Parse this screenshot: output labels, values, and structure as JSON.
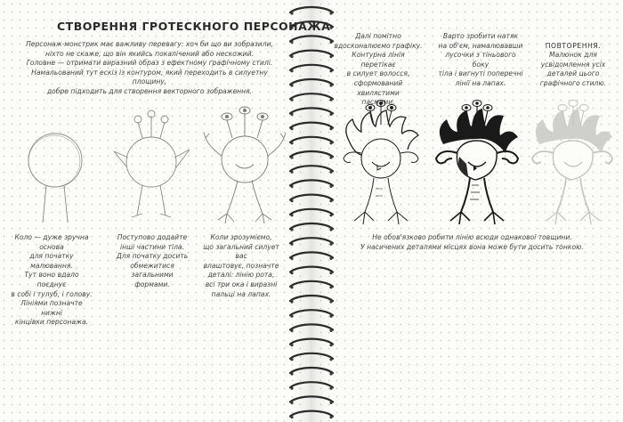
{
  "left_page": {
    "title": "СТВОРЕННЯ ГРОТЕСКНОГО ПЕРСОНАЖА",
    "intro": "Персонаж-монстрик має важливу перевагу: хоч би що ви зобразили,\nніхто не скаже, що він якийсь покалічений або нескожий.\nГоловне — отримати виразний образ з ефектному графічному стилі.\nНамальований тут ескіз із контуром, який переходить в силуетну площину,\nдобре підходить для створення векторного зображення.",
    "captions": [
      "Коло — дуже зручна основа\nдля початку малювання.\nТут воно вдало поєднує\nв собі і тулуб, і голову.\nЛініями позначте нижні\nкінцівки персонажа.",
      "Поступово додайте\nінші частини тіла.\nДля початку досить\nобмежитися\nзагальними\nформами.",
      "Коли зрозуміємо,\nщо загальний силует вас\nвлаштовує, позначте\nдеталі: лінію рота,\nвсі три ока і виразні\nпальці на лапах."
    ]
  },
  "right_page": {
    "top_captions": [
      "Далі помітно\nвдосконалюємо графіку.\nКонтурна лінія перетікає\nв силует волосся,\nсформований хвилястими\nпасмами.",
      "Варто зробити натяк\nна об'єм, намалювавши\nлусочки з тіньового боку\nтіла і вигнуті поперечні\nлінії на лапах."
    ],
    "repeat": {
      "heading": "ПОВТОРЕННЯ.",
      "body": "Малюнок для\nусвідомлення усіх\nдеталей цього\nграфічного стилю."
    },
    "bottom_caption": "Не обов'язково робити лінію всюди однакової товщини.\nУ насичених деталями місцях вона може бути досить тонкою."
  },
  "colors": {
    "paper": "#fcfcf8",
    "ink": "#222222",
    "pencil": "#8a8a8a"
  }
}
